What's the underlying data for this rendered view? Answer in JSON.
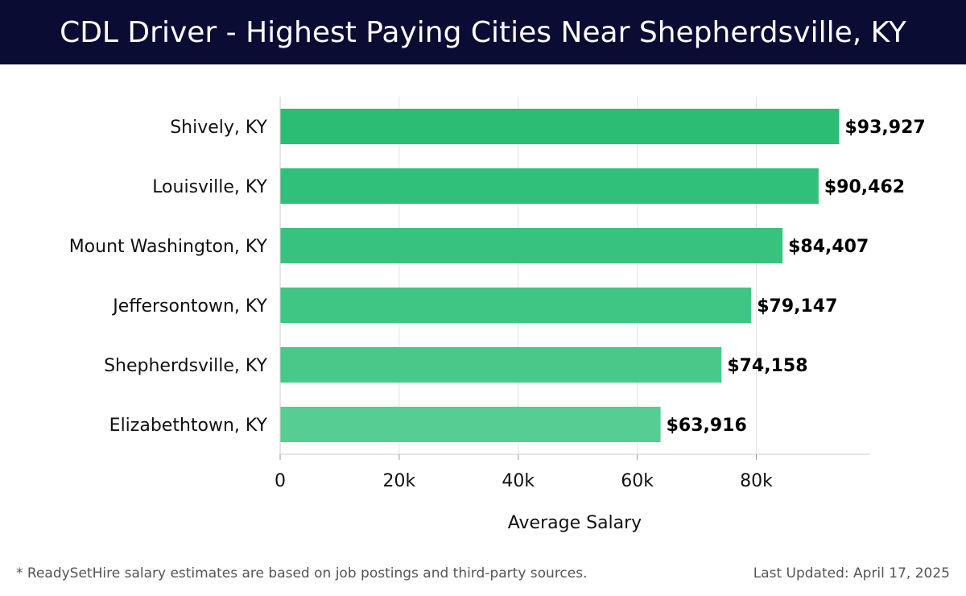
{
  "header": {
    "title": "CDL Driver - Highest Paying Cities Near Shepherdsville, KY"
  },
  "chart_data": {
    "type": "bar",
    "orientation": "horizontal",
    "categories": [
      "Shively, KY",
      "Louisville, KY",
      "Mount Washington, KY",
      "Jeffersontown, KY",
      "Shepherdsville, KY",
      "Elizabethtown, KY"
    ],
    "values": [
      93927,
      90462,
      84407,
      79147,
      74158,
      63916
    ],
    "value_labels": [
      "$93,927",
      "$90,462",
      "$84,407",
      "$79,147",
      "$74,158",
      "$63,916"
    ],
    "xlabel": "Average Salary",
    "ylabel": "",
    "xlim": [
      0,
      99000
    ],
    "x_ticks": [
      0,
      20000,
      40000,
      60000,
      80000
    ],
    "x_tick_labels": [
      "0",
      "20k",
      "40k",
      "60k",
      "80k"
    ],
    "grid": "vertical",
    "colors": [
      "#2bbd74",
      "#30c079",
      "#37c37e",
      "#3fc684",
      "#48c98a",
      "#56cd93"
    ]
  },
  "footer": {
    "note": "* ReadySetHire salary estimates are based on job postings and third-party sources.",
    "updated": "Last Updated: April 17, 2025"
  }
}
